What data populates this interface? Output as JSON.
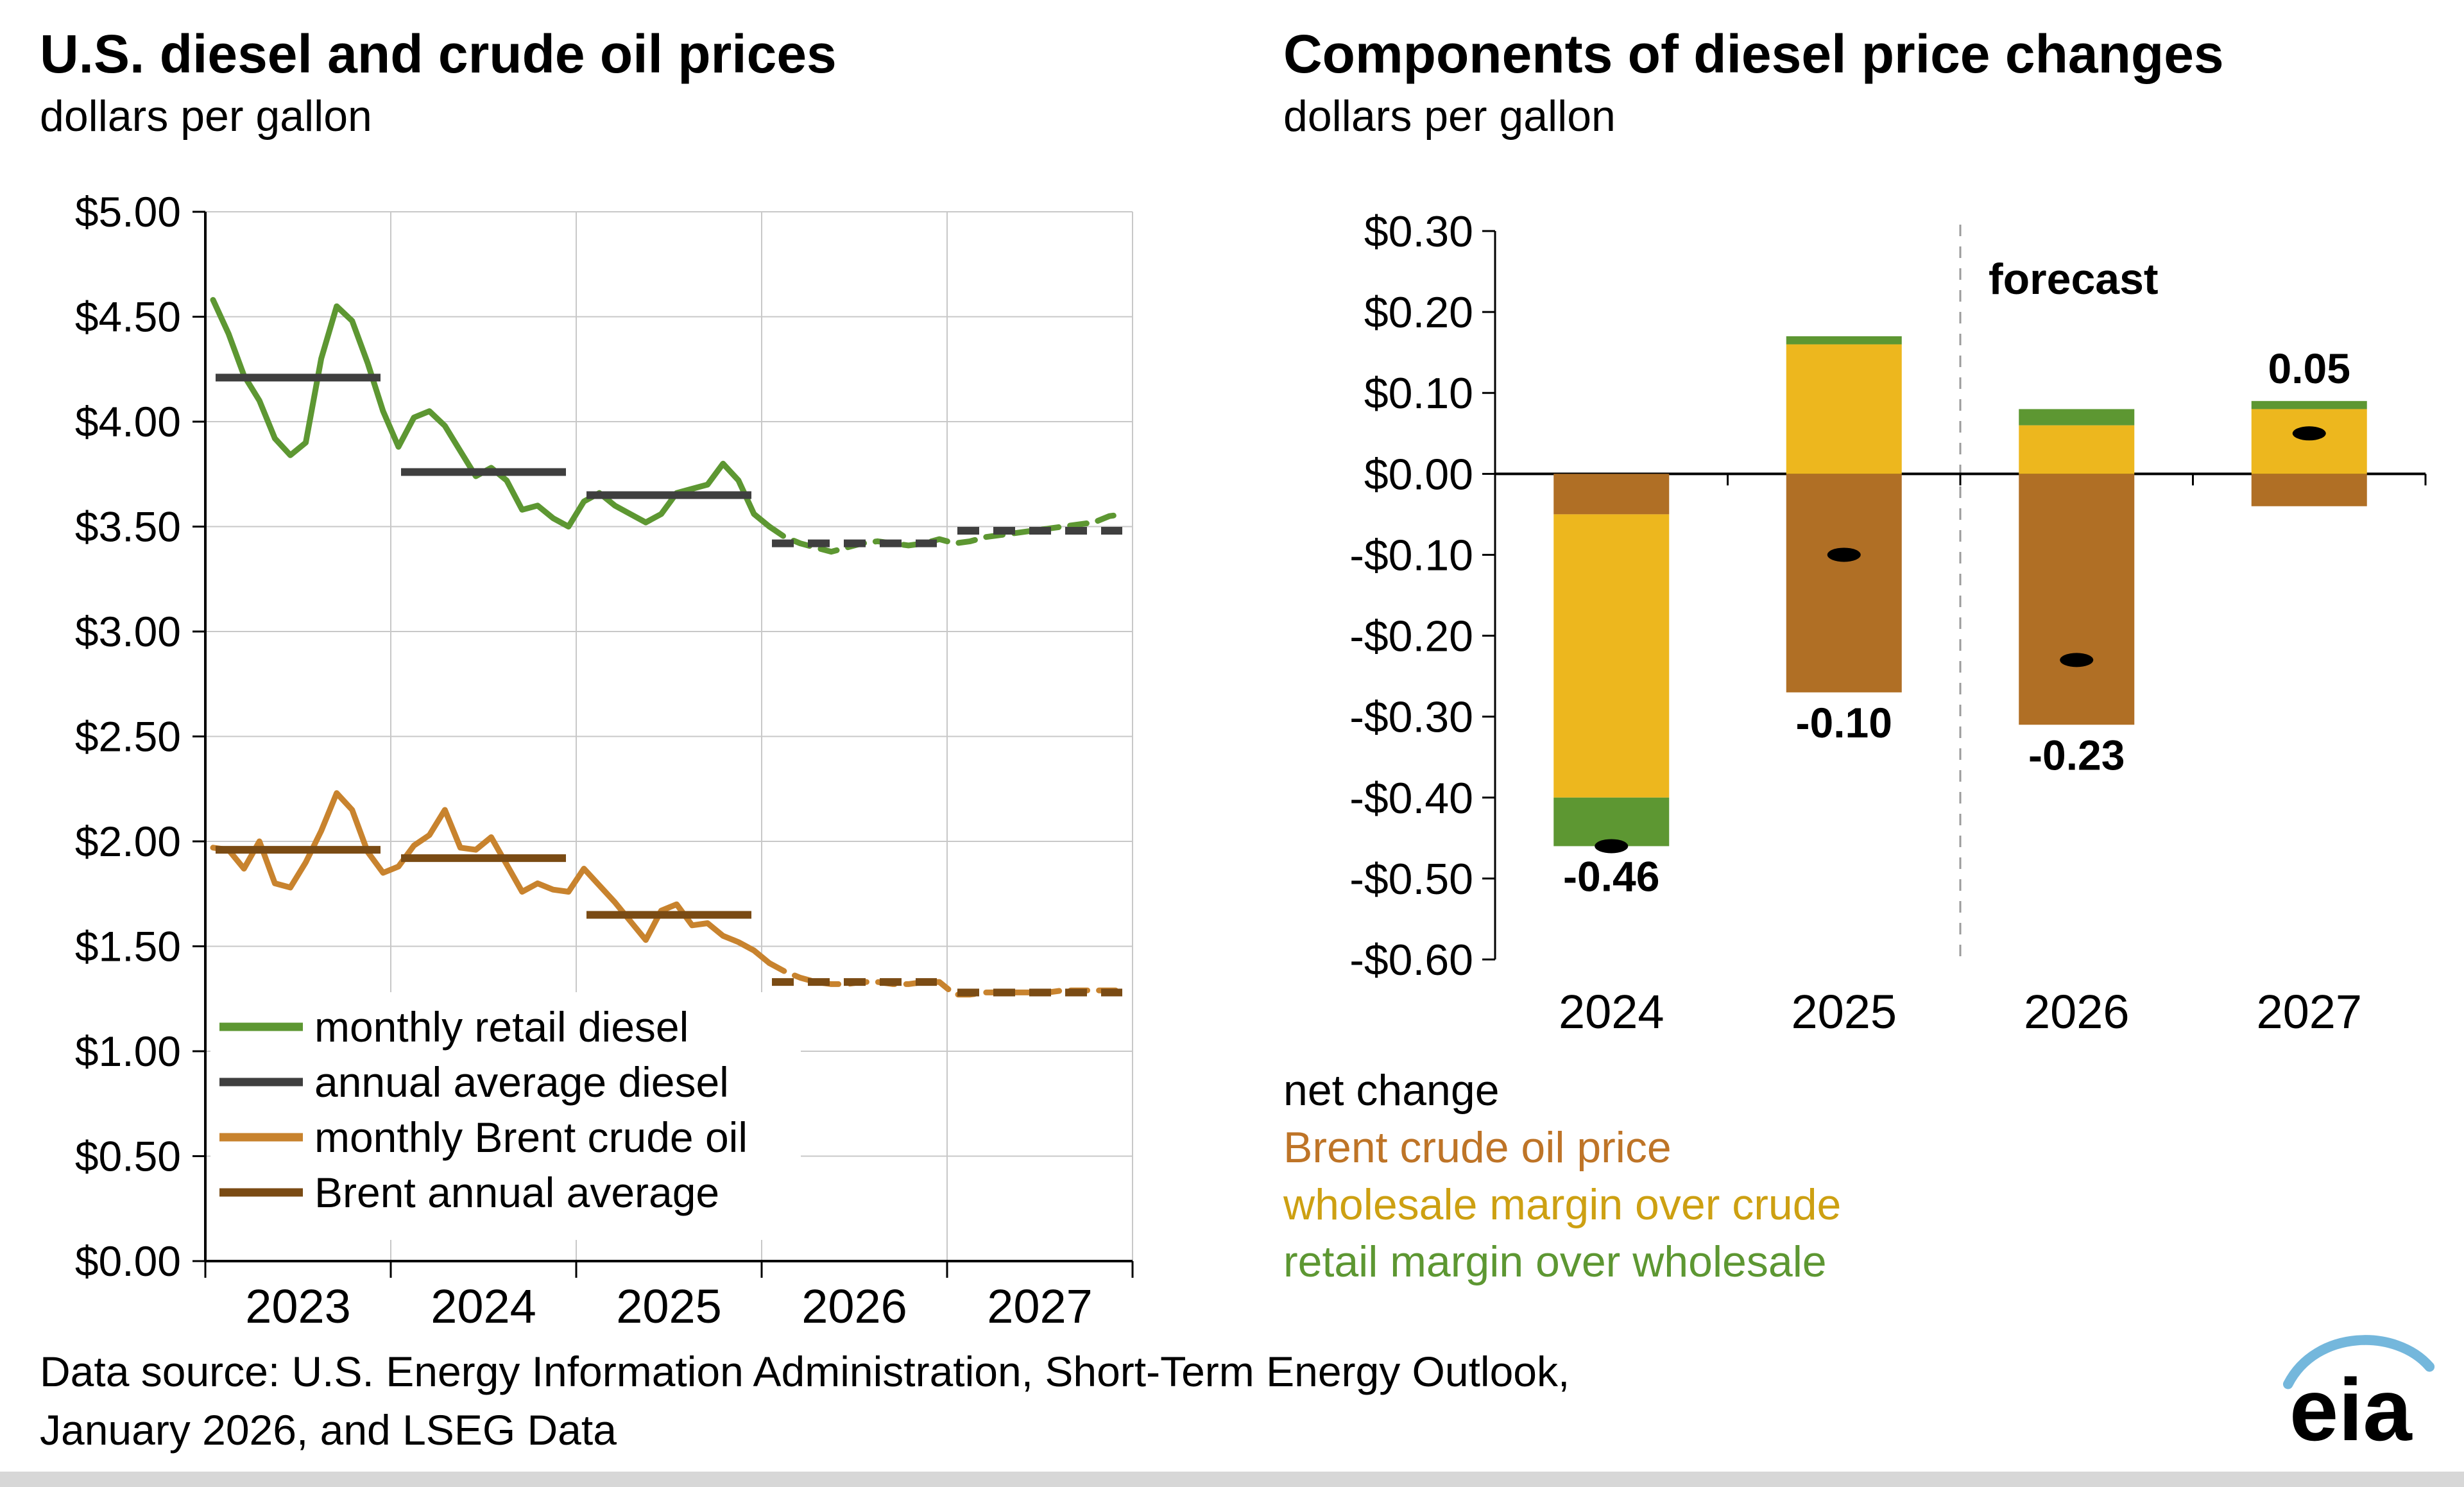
{
  "chart_data": [
    {
      "type": "line",
      "title": "U.S. diesel and crude oil prices",
      "subtitle": "dollars per gallon",
      "ylim": [
        0,
        5
      ],
      "ytick_labels": [
        "$0.00",
        "$0.50",
        "$1.00",
        "$1.50",
        "$2.00",
        "$2.50",
        "$3.00",
        "$3.50",
        "$4.00",
        "$4.50",
        "$5.00"
      ],
      "years": [
        "2023",
        "2024",
        "2025",
        "2026",
        "2027"
      ],
      "forecast_start_month_index": 36,
      "grid": true,
      "series": [
        {
          "name": "monthly retail diesel",
          "color": "#5D9732",
          "kind": "monthly",
          "values": [
            4.58,
            4.42,
            4.22,
            4.1,
            3.92,
            3.84,
            3.9,
            4.3,
            4.55,
            4.48,
            4.28,
            4.05,
            3.88,
            4.02,
            4.05,
            3.98,
            3.86,
            3.74,
            3.78,
            3.72,
            3.58,
            3.6,
            3.54,
            3.5,
            3.62,
            3.66,
            3.6,
            3.56,
            3.52,
            3.56,
            3.66,
            3.68,
            3.7,
            3.8,
            3.72,
            3.56,
            3.5,
            3.45,
            3.42,
            3.4,
            3.38,
            3.4,
            3.42,
            3.43,
            3.42,
            3.41,
            3.42,
            3.44,
            3.42,
            3.43,
            3.45,
            3.46,
            3.47,
            3.48,
            3.49,
            3.5,
            3.51,
            3.52,
            3.55,
            3.56
          ]
        },
        {
          "name": "annual average diesel",
          "color": "#3F3F3F",
          "kind": "annual",
          "values": [
            4.21,
            3.76,
            3.65,
            3.42,
            3.48
          ]
        },
        {
          "name": "monthly Brent crude oil",
          "color": "#C8832E",
          "kind": "monthly",
          "values": [
            1.97,
            1.96,
            1.87,
            2.0,
            1.8,
            1.78,
            1.9,
            2.05,
            2.23,
            2.15,
            1.95,
            1.85,
            1.88,
            1.98,
            2.03,
            2.15,
            1.97,
            1.96,
            2.02,
            1.89,
            1.76,
            1.8,
            1.77,
            1.76,
            1.87,
            1.79,
            1.71,
            1.62,
            1.53,
            1.67,
            1.7,
            1.6,
            1.61,
            1.55,
            1.52,
            1.48,
            1.42,
            1.38,
            1.35,
            1.33,
            1.32,
            1.32,
            1.33,
            1.33,
            1.32,
            1.32,
            1.33,
            1.33,
            1.27,
            1.27,
            1.28,
            1.28,
            1.28,
            1.28,
            1.28,
            1.29,
            1.29,
            1.29,
            1.29,
            1.29
          ]
        },
        {
          "name": "Brent annual average",
          "color": "#7A4B14",
          "kind": "annual",
          "values": [
            1.96,
            1.92,
            1.65,
            1.33,
            1.28
          ]
        }
      ],
      "legend": [
        {
          "label": "monthly retail diesel",
          "color": "#5D9732"
        },
        {
          "label": "annual average diesel",
          "color": "#3F3F3F"
        },
        {
          "label": "monthly Brent crude oil",
          "color": "#C8832E"
        },
        {
          "label": "Brent annual average",
          "color": "#7A4B14"
        }
      ]
    },
    {
      "type": "bar",
      "title": "Components of diesel price changes",
      "subtitle": "dollars per gallon",
      "categories": [
        "2024",
        "2025",
        "2026",
        "2027"
      ],
      "ylim": [
        -0.6,
        0.3
      ],
      "ytick_labels": [
        "$0.30",
        "$0.20",
        "$0.10",
        "$0.00",
        "-$0.10",
        "-$0.20",
        "-$0.30",
        "-$0.40",
        "-$0.50",
        "-$0.60"
      ],
      "forecast_label": "forecast",
      "forecast_divider_after_index": 1,
      "series": [
        {
          "name": "Brent crude oil price",
          "color": "#B06F25",
          "values": [
            -0.05,
            -0.27,
            -0.31,
            -0.04
          ]
        },
        {
          "name": "wholesale margin over crude",
          "color": "#EDB71E",
          "values": [
            -0.35,
            0.16,
            0.06,
            0.08
          ]
        },
        {
          "name": "retail margin over wholesale",
          "color": "#5D9732",
          "values": [
            -0.06,
            0.01,
            0.02,
            0.01
          ]
        }
      ],
      "net_change": {
        "label": "net change",
        "color": "#000000",
        "values": [
          -0.46,
          -0.1,
          -0.23,
          0.05
        ],
        "labels": [
          "-0.46",
          "-0.10",
          "-0.23",
          "0.05"
        ]
      },
      "legend": [
        {
          "label": "net change",
          "color": "#000000"
        },
        {
          "label": "Brent crude oil price",
          "color": "#BE7427"
        },
        {
          "label": "wholesale margin over crude",
          "color": "#CDA012"
        },
        {
          "label": "retail margin over wholesale",
          "color": "#5D9732"
        }
      ]
    }
  ],
  "footer": {
    "line1": "Data source: U.S. Energy Information Administration, Short-Term Energy Outlook,",
    "line2": "January 2026, and LSEG Data"
  },
  "logo": {
    "text": "eia"
  }
}
